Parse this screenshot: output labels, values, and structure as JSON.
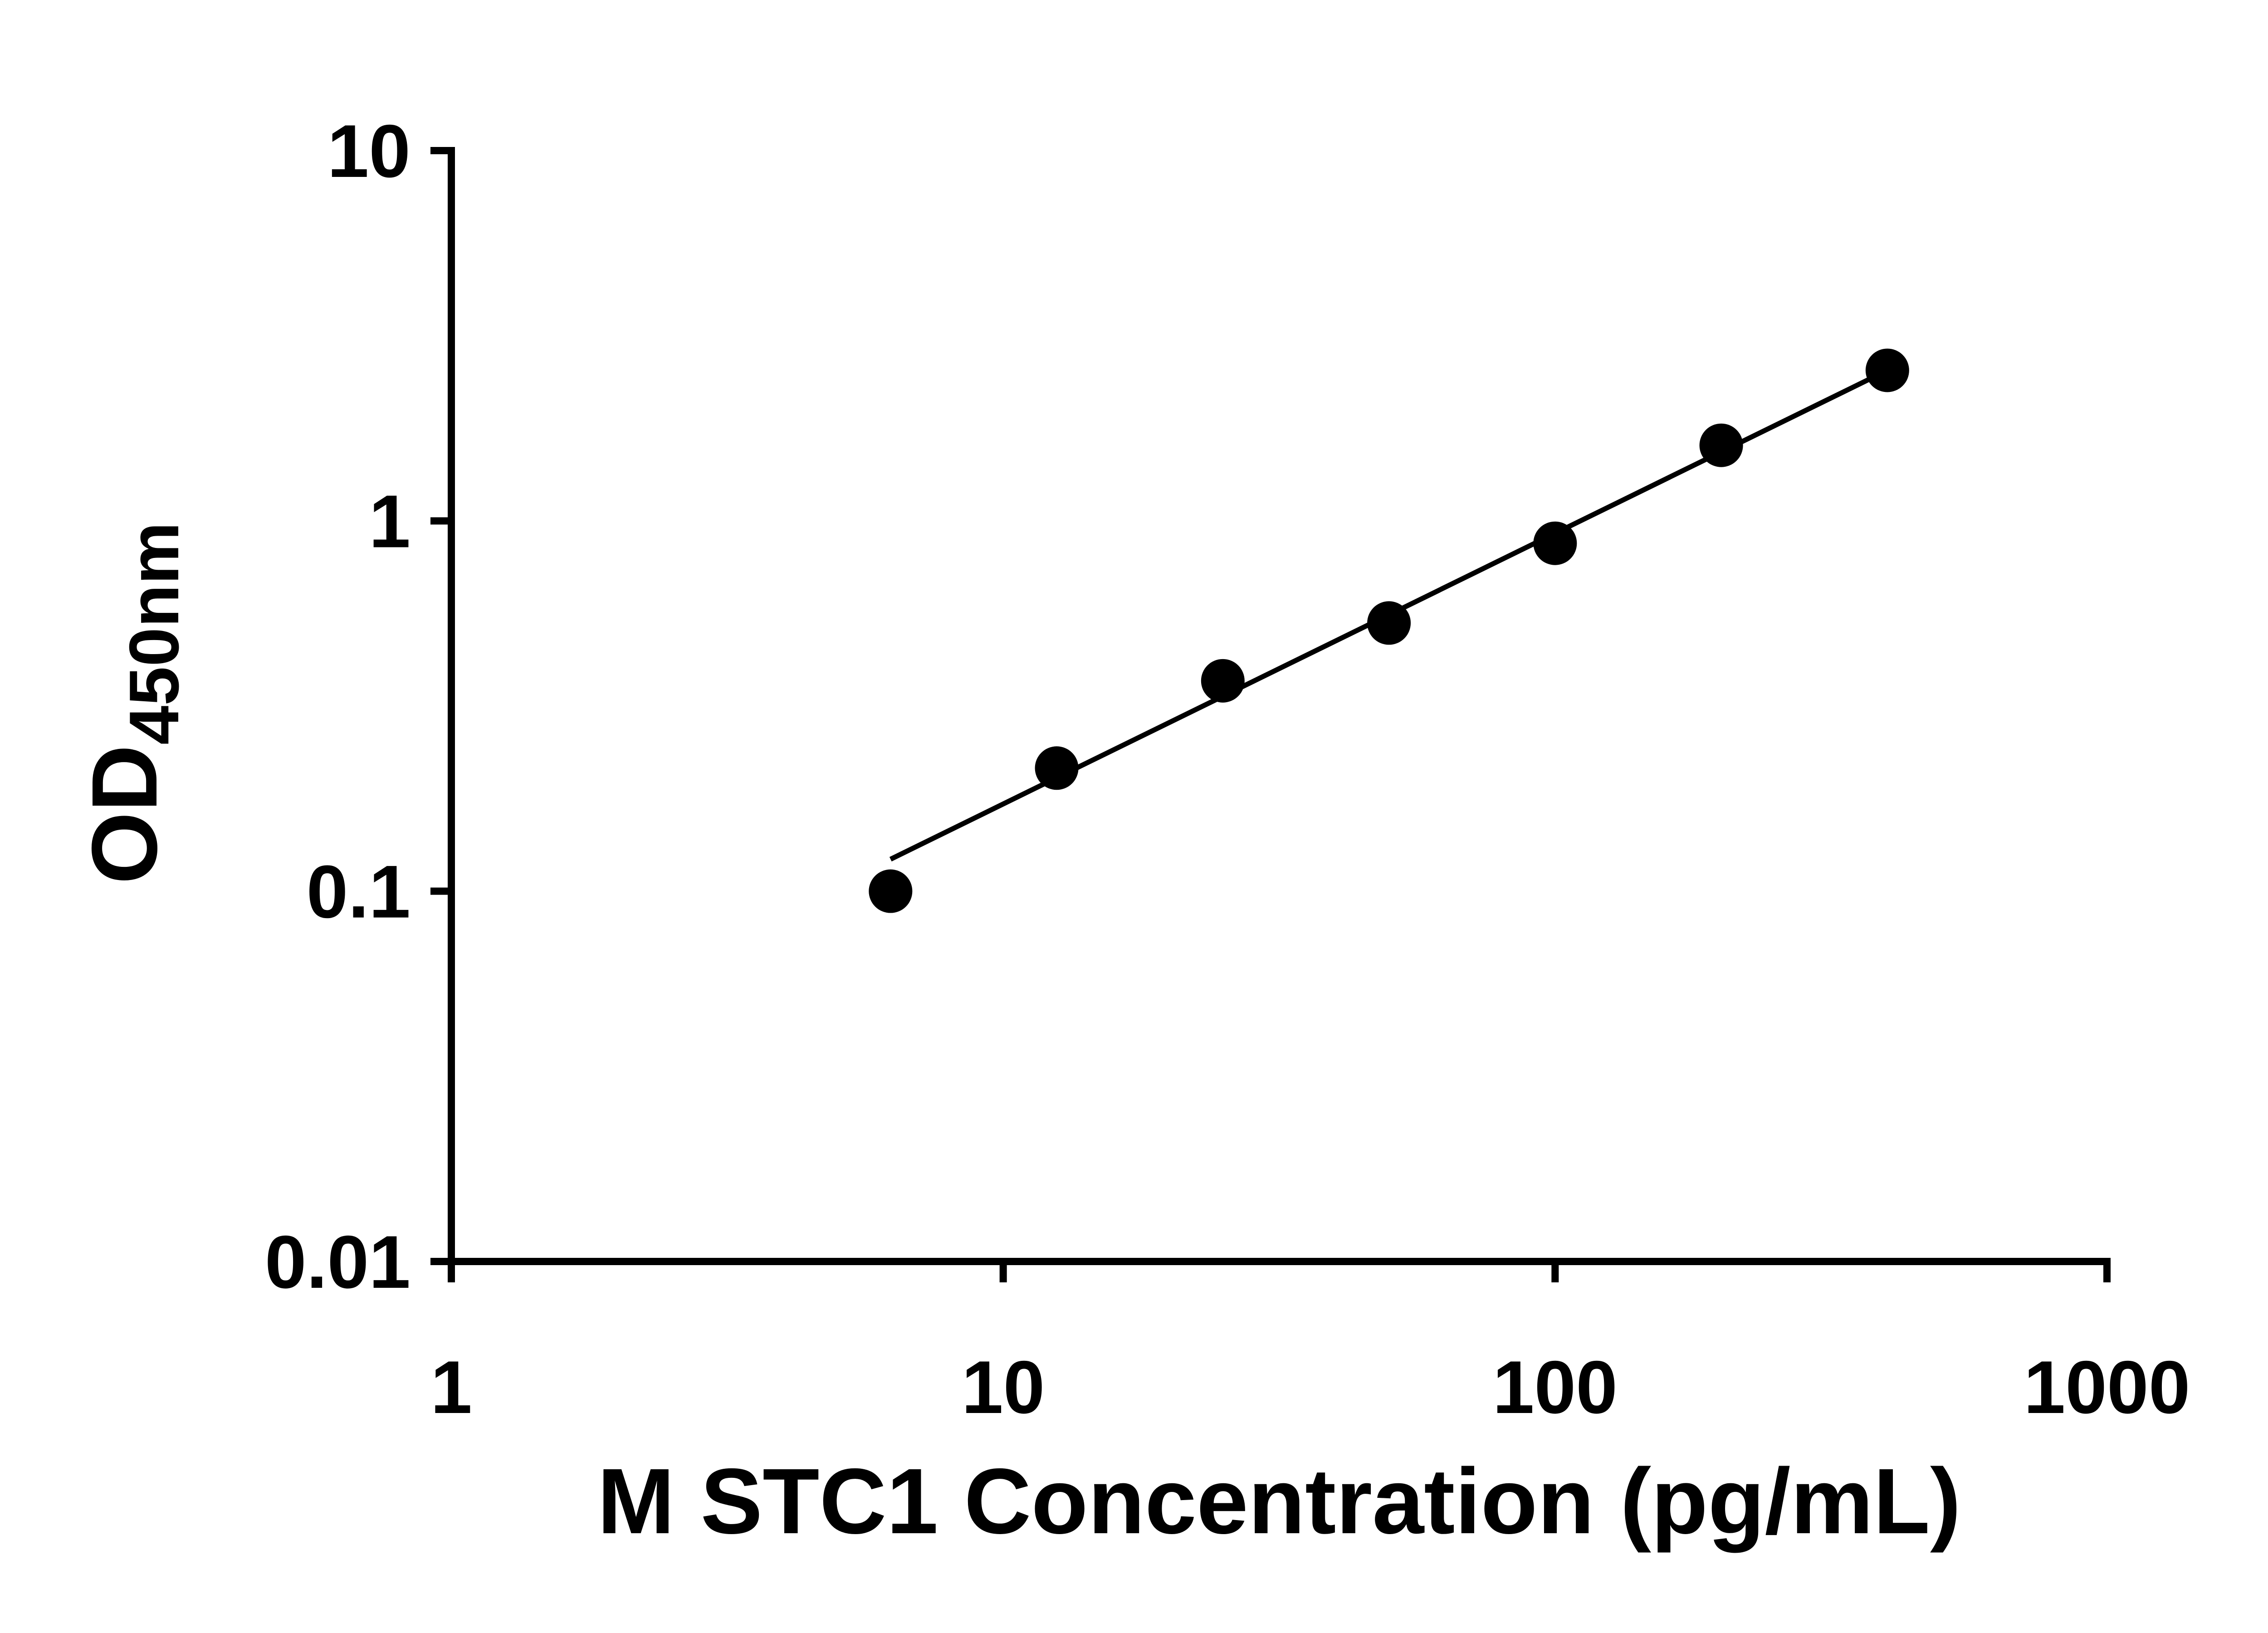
{
  "figure": {
    "background": "#ffffff"
  },
  "chart_data": {
    "type": "scatter",
    "title": "",
    "x_label": "M STC1 Concentration (pg/mL)",
    "y_label_main": "OD",
    "y_label_sub": "450nm",
    "x_scale": "log",
    "y_scale": "log",
    "x_range": [
      1,
      1000
    ],
    "y_range": [
      0.01,
      10
    ],
    "x_ticks": [
      {
        "value": 1,
        "label": "1"
      },
      {
        "value": 10,
        "label": "10"
      },
      {
        "value": 100,
        "label": "100"
      },
      {
        "value": 1000,
        "label": "1000"
      }
    ],
    "y_ticks": [
      {
        "value": 0.01,
        "label": "0.01"
      },
      {
        "value": 0.1,
        "label": "0.1"
      },
      {
        "value": 1,
        "label": "1"
      },
      {
        "value": 10,
        "label": "10"
      }
    ],
    "points": [
      {
        "x": 6.25,
        "y": 0.1
      },
      {
        "x": 12.5,
        "y": 0.215
      },
      {
        "x": 25,
        "y": 0.37
      },
      {
        "x": 50,
        "y": 0.53
      },
      {
        "x": 100,
        "y": 0.87
      },
      {
        "x": 200,
        "y": 1.6
      },
      {
        "x": 400,
        "y": 2.55
      }
    ],
    "trend_line": {
      "x1": 6.25,
      "y1": 0.122,
      "x2": 400,
      "y2": 2.55
    },
    "grid": false,
    "legend": null,
    "marker_color": "#000000",
    "line_color": "#000000",
    "axis_color": "#000000"
  }
}
